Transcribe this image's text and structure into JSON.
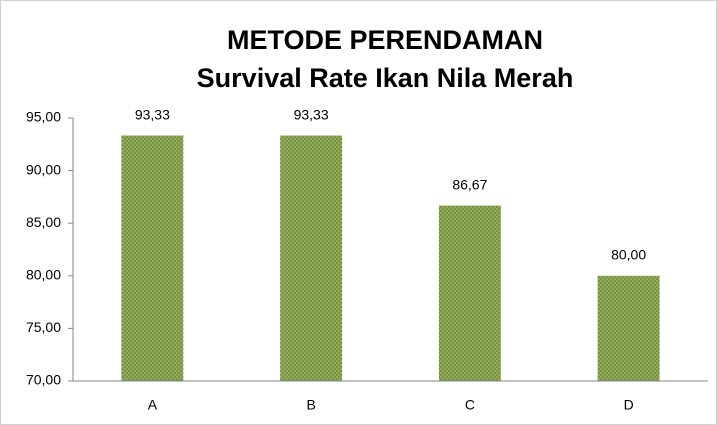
{
  "chart_data": {
    "type": "bar",
    "title": "METODE PERENDAMAN",
    "subtitle": "Survival Rate Ikan Nila Merah",
    "categories": [
      "A",
      "B",
      "C",
      "D"
    ],
    "values": [
      93.33,
      93.33,
      86.67,
      80
    ],
    "value_labels": [
      "93,33",
      "93,33",
      "86,67",
      "80,00"
    ],
    "color": "#77933c",
    "ylim": [
      70,
      95
    ],
    "yticks": [
      {
        "value": 70,
        "label": "70,00"
      },
      {
        "value": 75,
        "label": "75,00"
      },
      {
        "value": 80,
        "label": "80,00"
      },
      {
        "value": 85,
        "label": "85,00"
      },
      {
        "value": 90,
        "label": "90,00"
      },
      {
        "value": 95,
        "label": "95,00"
      }
    ],
    "grid": false
  }
}
